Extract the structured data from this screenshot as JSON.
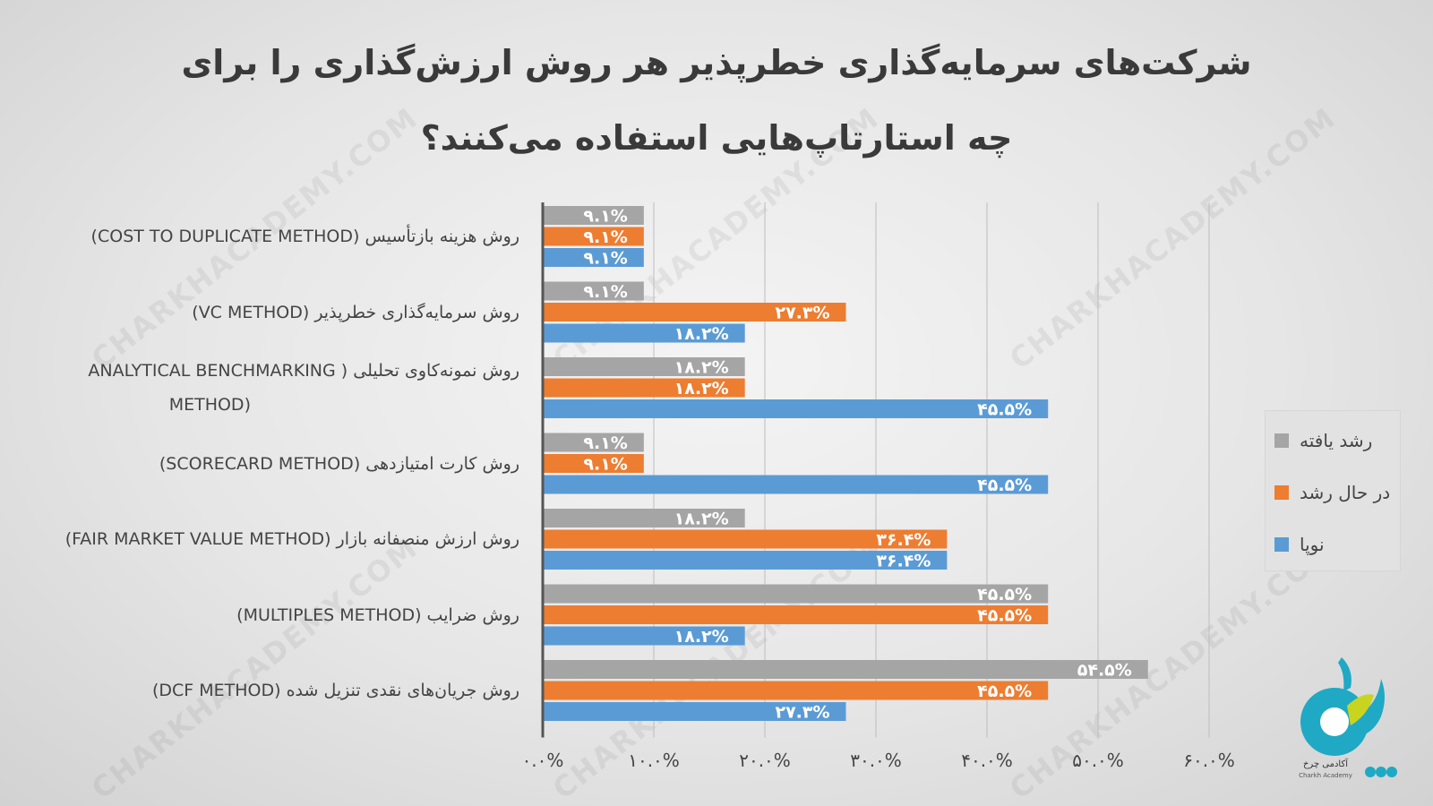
{
  "title": "شرکت‌های سرمایه‌گذاری خطرپذیر هر روش ارزش‌گذاری را برای چه استارتاپ‌هایی استفاده می‌کنند؟",
  "watermark": "CHARKHACADEMY.COM",
  "logo_caption": "آکادمی چرخ",
  "logo_subcaption": "Charkh Academy",
  "colors": {
    "grown": "#a5a5a5",
    "growing": "#ed7d31",
    "startup": "#5b9bd5",
    "label_text": "#ffffff",
    "axis": "#555555",
    "grid": "#bdbdbd"
  },
  "legend": [
    {
      "name": "رشد یافته",
      "color": "#a5a5a5"
    },
    {
      "name": "در حال رشد",
      "color": "#ed7d31"
    },
    {
      "name": "نوپا",
      "color": "#5b9bd5"
    }
  ],
  "chart_data": {
    "type": "bar",
    "orientation": "horizontal",
    "title": "شرکت‌های سرمایه‌گذاری خطرپذیر هر روش ارزش‌گذاری را برای چه استارتاپ‌هایی استفاده می‌کنند؟",
    "categories": [
      "روش هزینه بازتأسیس (COST TO DUPLICATE METHOD)",
      "روش سرمایه‌گذاری خطرپذیر (VC METHOD)",
      "روش نمونه‌کاوی تحلیلی ( ANALYTICAL BENCHMARKING METHOD)",
      "روش کارت امتیازدهی (SCORECARD METHOD)",
      "روش ارزش منصفانه بازار (FAIR MARKET VALUE METHOD)",
      "روش ضرایب (MULTIPLES METHOD)",
      "روش جریان‌های نقدی تنزیل شده (DCF METHOD)"
    ],
    "category_lines": [
      [
        "روش هزینه بازتأسیس (COST TO DUPLICATE METHOD)"
      ],
      [
        "روش سرمایه‌گذاری خطرپذیر (VC METHOD)"
      ],
      [
        "روش نمونه‌کاوی تحلیلی ( ANALYTICAL BENCHMARKING",
        "(METHOD"
      ],
      [
        "روش کارت امتیازدهی (SCORECARD METHOD)"
      ],
      [
        "روش ارزش منصفانه بازار (FAIR MARKET VALUE METHOD)"
      ],
      [
        "روش ضرایب (MULTIPLES METHOD)"
      ],
      [
        "روش جریان‌های نقدی تنزیل شده (DCF METHOD)"
      ]
    ],
    "series": [
      {
        "name": "رشد یافته",
        "color": "#a5a5a5",
        "values": [
          9.1,
          9.1,
          18.2,
          9.1,
          18.2,
          45.5,
          54.5
        ],
        "labels": [
          "۹.۱%",
          "۹.۱%",
          "۱۸.۲%",
          "۹.۱%",
          "۱۸.۲%",
          "۴۵.۵%",
          "۵۴.۵%"
        ]
      },
      {
        "name": "در حال رشد",
        "color": "#ed7d31",
        "values": [
          9.1,
          27.3,
          18.2,
          9.1,
          36.4,
          45.5,
          45.5
        ],
        "labels": [
          "۹.۱%",
          "۲۷.۳%",
          "۱۸.۲%",
          "۹.۱%",
          "۳۶.۴%",
          "۴۵.۵%",
          "۴۵.۵%"
        ]
      },
      {
        "name": "نوپا",
        "color": "#5b9bd5",
        "values": [
          9.1,
          18.2,
          45.5,
          45.5,
          36.4,
          18.2,
          27.3
        ],
        "labels": [
          "۹.۱%",
          "۱۸.۲%",
          "۴۵.۵%",
          "۴۵.۵%",
          "۳۶.۴%",
          "۱۸.۲%",
          "۲۷.۳%"
        ]
      }
    ],
    "xlim": [
      0,
      60
    ],
    "xticks": [
      0,
      10,
      20,
      30,
      40,
      50,
      60
    ],
    "xtick_labels": [
      "۰.۰%",
      "۱۰.۰%",
      "۲۰.۰%",
      "۳۰.۰%",
      "۴۰.۰%",
      "۵۰.۰%",
      "۶۰.۰%"
    ],
    "grid": "vertical",
    "legend_position": "right"
  }
}
